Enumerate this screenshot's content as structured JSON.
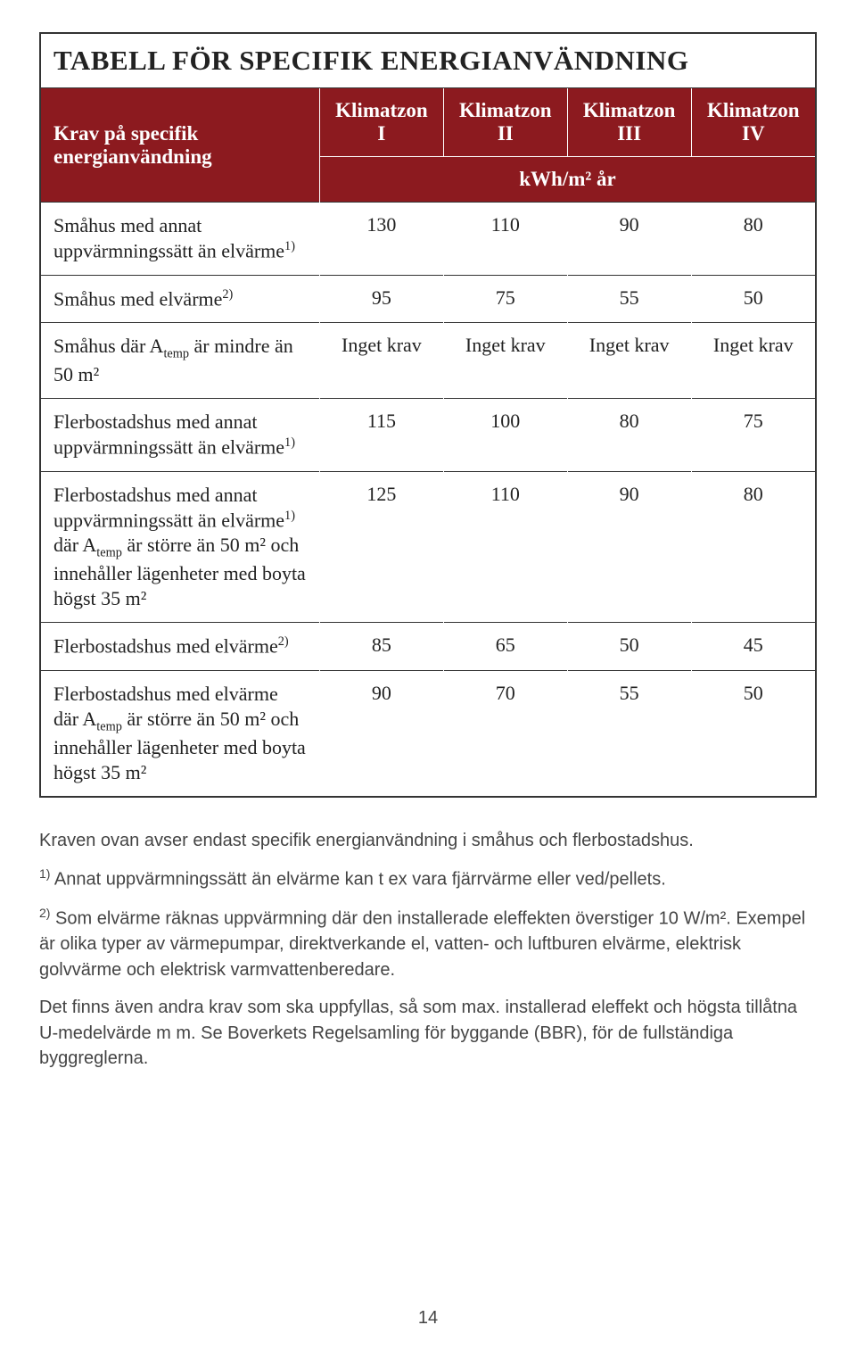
{
  "table": {
    "title": "TABELL FÖR SPECIFIK ENERGIANVÄNDNING",
    "header_rowlabel_line1": "Krav på specifik",
    "header_rowlabel_line2": "energianvändning",
    "col_headers": [
      "Klimatzon I",
      "Klimatzon II",
      "Klimatzon III",
      "Klimatzon IV"
    ],
    "subheader_unit": "kWh/m² år",
    "colors": {
      "header_bg": "#8c1a1f",
      "header_fg": "#ffffff",
      "border": "#333333",
      "text": "#222222",
      "notes_text": "#444444",
      "page_bg": "#ffffff"
    },
    "font_sizes": {
      "title": 31,
      "header": 23,
      "body": 22,
      "notes": 20
    },
    "rows": [
      {
        "label_html": "Småhus med annat uppvärmningssätt än elvärme<sup class='sup'>1)</sup>",
        "values": [
          "130",
          "110",
          "90",
          "80"
        ]
      },
      {
        "label_html": "Småhus med elvärme<sup class='sup'>2)</sup>",
        "values": [
          "95",
          "75",
          "55",
          "50"
        ]
      },
      {
        "label_html": "Småhus där A<sub class='sub'>temp</sub> är mindre än 50 m²",
        "values": [
          "Inget krav",
          "Inget krav",
          "Inget krav",
          "Inget krav"
        ]
      },
      {
        "label_html": "Flerbostadshus med annat uppvärmningssätt än elvärme<sup class='sup'>1)</sup>",
        "values": [
          "115",
          "100",
          "80",
          "75"
        ]
      },
      {
        "label_html": "Flerbostadshus med annat uppvärmningssätt än elvärme<sup class='sup'>1)</sup> där A<sub class='sub'>temp</sub> är större än 50 m² och innehåller lägenheter med boyta högst 35 m²",
        "values": [
          "125",
          "110",
          "90",
          "80"
        ]
      },
      {
        "label_html": "Flerbostadshus med elvärme<sup class='sup'>2)</sup>",
        "values": [
          "85",
          "65",
          "50",
          "45"
        ]
      },
      {
        "label_html": "Flerbostadshus med elvärme där A<sub class='sub'>temp</sub> är större än 50 m² och innehåller lägenheter med boyta högst 35 m²",
        "values": [
          "90",
          "70",
          "55",
          "50"
        ]
      }
    ]
  },
  "notes": {
    "p1": "Kraven ovan avser endast specifik energianvändning i småhus och flerbostadshus.",
    "p2_html": "<sup class='sup2'>1)</sup> Annat uppvärmningssätt än elvärme kan t ex vara fjärrvärme eller ved/pellets.",
    "p3_html": "<sup class='sup2'>2)</sup> Som elvärme räknas uppvärmning där den installerade eleffekten överstiger 10 W/m². Exempel är olika typer av värmepumpar, direktverkande el, vatten- och luftburen elvärme, elektrisk golvvärme och elektrisk varmvattenberedare.",
    "p4": "Det finns även andra krav som ska uppfyllas, så som max. installerad eleffekt och högsta tillåtna U-medelvärde m m. Se Boverkets Regelsamling för byggande (BBR), för de fullständiga byggreglerna."
  },
  "page_number": "14"
}
